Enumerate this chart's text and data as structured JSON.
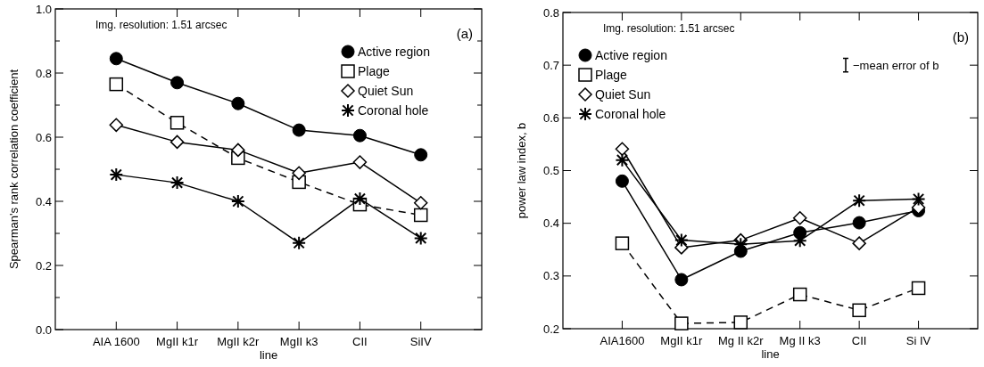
{
  "chart_data": [
    {
      "type": "line",
      "ylabel": "Spearman's rank correlation coefficient",
      "xlabel": "line",
      "categories": [
        "AIA 1600",
        "MgII k1r",
        "MgII k2r",
        "MgII k3",
        "CII",
        "SiIV"
      ],
      "ylim": [
        0,
        1
      ],
      "yticks": [
        {
          "value": 0,
          "label": "0.0"
        },
        {
          "value": 0.1,
          "label": null
        },
        0.2,
        {
          "value": 0.3,
          "label": null
        },
        0.4,
        {
          "value": 0.5,
          "label": null
        },
        0.6,
        {
          "value": 0.7,
          "label": null
        },
        0.8,
        {
          "value": 0.9,
          "label": null
        },
        {
          "value": 1,
          "label": "1.0"
        }
      ],
      "legend": "top right",
      "grid": false,
      "annotations": [
        "Img. resolution: 1.51 arcsec",
        "(a)"
      ],
      "series": [
        {
          "name": "Active region",
          "color": "#000000",
          "marker": "circle",
          "line_style": "solid",
          "values": [
            0.845,
            0.77,
            0.705,
            0.622,
            0.605,
            0.545
          ]
        },
        {
          "name": "Plage",
          "color": "#000000",
          "marker": "square",
          "line_style": "dashed",
          "values": [
            0.765,
            0.645,
            0.535,
            0.46,
            0.39,
            0.357
          ]
        },
        {
          "name": "Quiet Sun",
          "color": "#000000",
          "marker": "diamond",
          "line_style": "solid",
          "values": [
            0.638,
            0.585,
            0.56,
            0.488,
            0.522,
            0.395
          ]
        },
        {
          "name": "Coronal hole",
          "color": "#000000",
          "marker": "cross",
          "line_style": "solid",
          "values": [
            0.483,
            0.458,
            0.4,
            0.27,
            0.408,
            0.285
          ]
        }
      ]
    },
    {
      "type": "line",
      "ylabel": "power law index, b",
      "xlabel": "line",
      "categories": [
        "AIA1600",
        "MgII k1r",
        "Mg II k2r",
        "Mg II k3",
        "CII",
        "Si IV"
      ],
      "ylim": [
        0.2,
        0.8
      ],
      "yticks": [
        0.2,
        0.3,
        0.4,
        0.5,
        0.6,
        0.7,
        0.8
      ],
      "legend": "top left",
      "grid": false,
      "annotations": [
        "Img. resolution: 1.51 arcsec",
        "(b)",
        "−mean error of b"
      ],
      "series": [
        {
          "name": "Active region",
          "color": "#000000",
          "marker": "circle",
          "line_style": "solid",
          "values": [
            0.48,
            0.293,
            0.347,
            0.382,
            0.401,
            0.424
          ]
        },
        {
          "name": "Plage",
          "color": "#000000",
          "marker": "square",
          "line_style": "dashed",
          "values": [
            0.362,
            0.21,
            0.212,
            0.265,
            0.235,
            0.277
          ]
        },
        {
          "name": "Quiet Sun",
          "color": "#000000",
          "marker": "diamond",
          "line_style": "solid",
          "values": [
            0.541,
            0.354,
            0.368,
            0.41,
            0.362,
            0.43
          ]
        },
        {
          "name": "Coronal hole",
          "color": "#000000",
          "marker": "cross",
          "line_style": "solid",
          "values": [
            0.52,
            0.368,
            0.36,
            0.367,
            0.443,
            0.446
          ]
        }
      ]
    }
  ]
}
